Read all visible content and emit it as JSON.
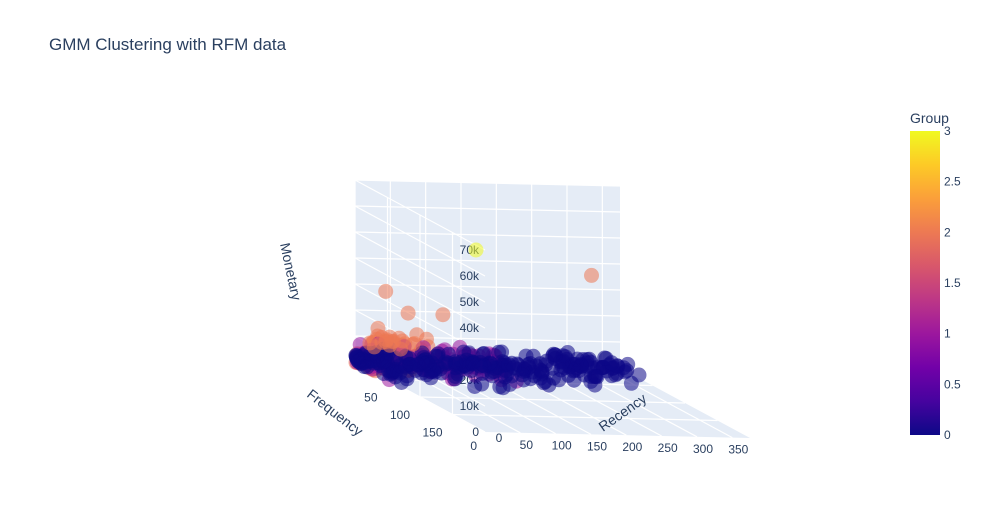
{
  "chart_data": {
    "type": "scatter",
    "projection": "3d",
    "title": "GMM Clustering with RFM data",
    "axes": {
      "x": {
        "title": "Recency",
        "ticks": [
          "0",
          "50",
          "100",
          "150",
          "200",
          "250",
          "300",
          "350"
        ],
        "range": [
          0,
          375
        ]
      },
      "y": {
        "title": "Frequency",
        "ticks": [
          "0",
          "50",
          "100",
          "150"
        ],
        "range": [
          0,
          200
        ]
      },
      "z": {
        "title": "Monetary",
        "ticks": [
          "0",
          "10k",
          "20k",
          "30k",
          "40k",
          "50k",
          "60k",
          "70k"
        ],
        "range": [
          0,
          70000
        ]
      }
    },
    "colorbar": {
      "title": "Group",
      "ticks": [
        "0",
        "0.5",
        "1",
        "1.5",
        "2",
        "2.5",
        "3"
      ],
      "range": [
        0,
        3
      ],
      "colorscale": [
        "#0d0887",
        "#46039f",
        "#7201a8",
        "#9c179e",
        "#bd3786",
        "#d8576b",
        "#ed7953",
        "#fb9f3a",
        "#fdca26",
        "#f0f921"
      ]
    },
    "grid": true,
    "marker_opacity": 0.55,
    "highlighted_points": [
      {
        "recency": 1,
        "frequency": 185,
        "monetary": 68000,
        "group": 3
      },
      {
        "recency": 330,
        "frequency": 5,
        "monetary": 36000,
        "group": 2
      },
      {
        "recency": 60,
        "frequency": 70,
        "monetary": 28000,
        "group": 2
      },
      {
        "recency": 20,
        "frequency": 60,
        "monetary": 27000,
        "group": 2
      },
      {
        "recency": 25,
        "frequency": 20,
        "monetary": 30000,
        "group": 2
      },
      {
        "recency": 5,
        "frequency": 30,
        "monetary": 17000,
        "group": 2
      },
      {
        "recency": 10,
        "frequency": 12,
        "monetary": 9000,
        "group": 2
      },
      {
        "recency": 30,
        "frequency": 15,
        "monetary": 10000,
        "group": 2
      },
      {
        "recency": 15,
        "frequency": 25,
        "monetary": 11000,
        "group": 2
      },
      {
        "recency": 40,
        "frequency": 10,
        "monetary": 8000,
        "group": 2
      },
      {
        "recency": 50,
        "frequency": 5,
        "monetary": 9000,
        "group": 2
      },
      {
        "recency": 25,
        "frequency": 30,
        "monetary": 12000,
        "group": 2
      },
      {
        "recency": 8,
        "frequency": 40,
        "monetary": 14000,
        "group": 2
      },
      {
        "recency": 35,
        "frequency": 35,
        "monetary": 13000,
        "group": 2
      },
      {
        "recency": 45,
        "frequency": 40,
        "monetary": 12500,
        "group": 2
      },
      {
        "recency": 20,
        "frequency": 8,
        "monetary": 7000,
        "group": 2
      },
      {
        "recency": 60,
        "frequency": 5,
        "monetary": 6000,
        "group": 2
      }
    ],
    "bulk_trend": {
      "description_from_axes": "dense clusters along low Frequency and all Recency values with low Monetary",
      "group_0": {
        "recency_range": [
          0,
          373
        ],
        "frequency_range": [
          1,
          200
        ],
        "monetary_range": [
          0,
          6000
        ]
      },
      "group_1": {
        "recency_range": [
          0,
          200
        ],
        "frequency_range": [
          1,
          150
        ],
        "monetary_range": [
          0,
          8000
        ]
      },
      "group_2": {
        "recency_range": [
          0,
          100
        ],
        "frequency_range": [
          1,
          80
        ],
        "monetary_range": [
          0,
          12000
        ]
      }
    }
  }
}
